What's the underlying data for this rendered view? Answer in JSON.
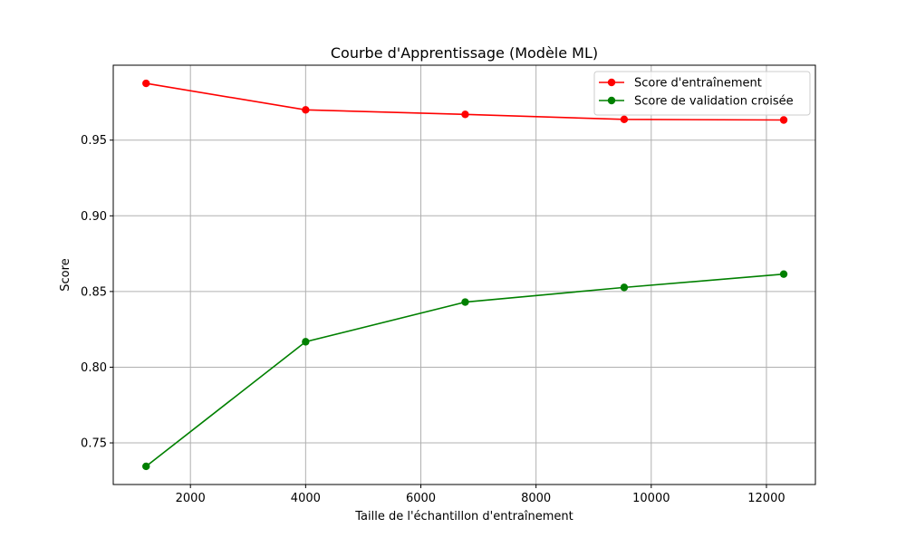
{
  "chart_data": {
    "type": "line",
    "title": "Courbe d'Apprentissage (Modèle ML)",
    "xlabel": "Taille de l'échantillon d'entraînement",
    "ylabel": "Score",
    "xlim": [
      660,
      12850
    ],
    "ylim": [
      0.7225,
      0.9995
    ],
    "x_ticks": [
      2000,
      4000,
      6000,
      8000,
      10000,
      12000
    ],
    "x_tick_labels": [
      "2000",
      "4000",
      "6000",
      "8000",
      "10000",
      "12000"
    ],
    "y_ticks": [
      0.75,
      0.8,
      0.85,
      0.9,
      0.95
    ],
    "y_tick_labels": [
      "0.75",
      "0.80",
      "0.85",
      "0.90",
      "0.95"
    ],
    "grid": true,
    "legend_position": "top-right",
    "x": [
      1230,
      4000,
      6770,
      9530,
      12300
    ],
    "series": [
      {
        "name": "Score d'entraînement",
        "color": "#ff0000",
        "marker": "circle",
        "values": [
          0.9875,
          0.97,
          0.967,
          0.9637,
          0.9633
        ]
      },
      {
        "name": "Score de validation croisée",
        "color": "#008000",
        "marker": "circle",
        "values": [
          0.7345,
          0.8168,
          0.843,
          0.8527,
          0.8615
        ]
      }
    ]
  }
}
